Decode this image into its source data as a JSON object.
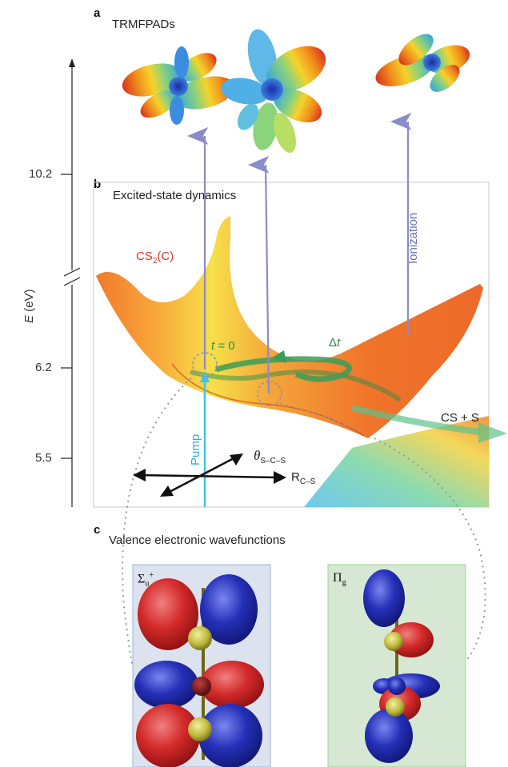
{
  "panels": {
    "a": {
      "letter": "a",
      "title": "TRMFPADs"
    },
    "b": {
      "letter": "b",
      "title": "Excited-state dynamics"
    },
    "c": {
      "letter": "c",
      "title": "Valence electronic wavefunctions"
    }
  },
  "energy_axis": {
    "label_symbol": "E",
    "label_unit": " (eV)",
    "ticks": [
      "10.2",
      "6.2",
      "5.5"
    ]
  },
  "surface_labels": {
    "cs2_main": "CS",
    "cs2_sub": "2",
    "cs2_state": "(C)",
    "ionization": "Ionization",
    "t0_symbol": "t",
    "t0_value": " = 0",
    "dt_delta": "Δ",
    "dt_symbol": "t",
    "products": "CS + S",
    "pump": "Pump",
    "theta_symbol": "θ",
    "theta_sub": "S–C–S",
    "r_symbol": "R",
    "r_sub": "C–S"
  },
  "wavefunctions": {
    "left": {
      "symbol": "Σ",
      "sub": "u",
      "sup": "+",
      "bg": "#dce3ef"
    },
    "right": {
      "symbol": "Π",
      "sub": "g",
      "bg": "#d6e8d3"
    }
  },
  "colors": {
    "arrow_purple": "#8a8cc8",
    "pump_cyan": "#41c2ec",
    "wave_red": "#d42a2a",
    "wave_blue": "#2430b8",
    "wave_yellow": "#c9c64a"
  }
}
